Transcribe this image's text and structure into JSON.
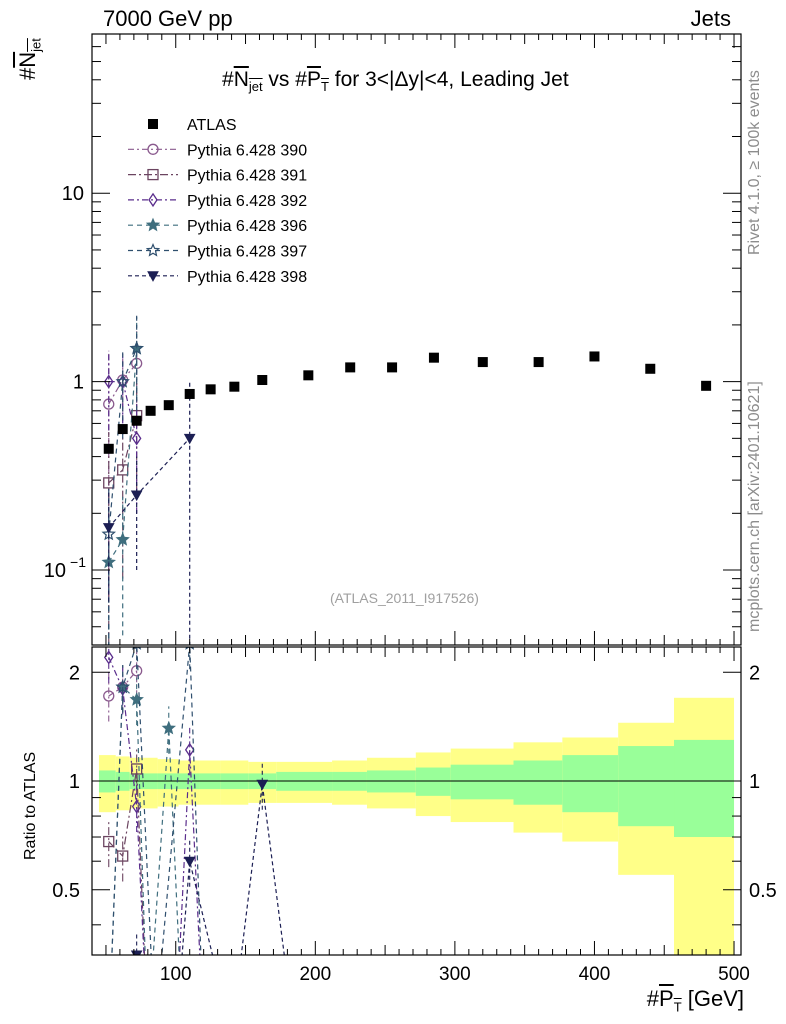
{
  "header": {
    "left": "7000 GeV pp",
    "right": "Jets"
  },
  "side_labels": {
    "rivet": "Rivet 4.1.0, ≥ 100k events",
    "source": "mcplots.cern.ch [arXiv:2401.10621]"
  },
  "reference": "(ATLAS_2011_I917526)",
  "labels": {
    "title_hash": "#",
    "title_n": "N",
    "title_n_sub": "jet",
    "title_vs": " vs #",
    "title_p": "P",
    "title_p_sub": "T",
    "title_rest": " for 3<|Δy|<4, Leading Jet",
    "ylabel_hash": "#",
    "ylabel_n": "N",
    "ylabel_sub": "jet",
    "ylabel_ratio": "Ratio to ATLAS",
    "xlabel_hash": "#",
    "xlabel_p": "P",
    "xlabel_sub": "T",
    "xlabel_unit": " [GeV]"
  },
  "colors": {
    "data": "#000000",
    "band_inner": "#99ff99",
    "band_outer": "#ffff88",
    "p390": "#8a5a8e",
    "p391": "#6b4460",
    "p392": "#5a2d8c",
    "p396": "#3f6e7e",
    "p397": "#2f4f6e",
    "p398": "#1c1f54"
  },
  "chart_data": {
    "type": "scatter",
    "title": "#Njet vs #PT for 3<|Δy|<4, Leading Jet",
    "xlabel": "#PT [GeV]",
    "ylabel": "#Njet",
    "xlim": [
      40,
      505
    ],
    "ylim": [
      0.04,
      70
    ],
    "ylog": true,
    "ratio_ylabel": "Ratio to ATLAS",
    "ratio_ylim": [
      0.33,
      2.35
    ],
    "ratio_ylog": true,
    "x_ticks": [
      100,
      200,
      300,
      400,
      500
    ],
    "y_ticks": [
      {
        "value": 0.1,
        "base": "10",
        "exp": "−1"
      },
      {
        "value": 1,
        "base": "1",
        "exp": ""
      },
      {
        "value": 10,
        "base": "10",
        "exp": ""
      }
    ],
    "ratio_ticks": [
      {
        "value": 0.5,
        "label": "0.5"
      },
      {
        "value": 1,
        "label": "1"
      },
      {
        "value": 2,
        "label": "2"
      }
    ],
    "atlas": {
      "name": "ATLAS",
      "x": [
        52,
        62,
        72,
        82,
        95,
        110,
        125,
        142,
        162,
        195,
        225,
        255,
        285,
        320,
        360,
        400,
        440,
        480
      ],
      "y": [
        0.44,
        0.56,
        0.62,
        0.7,
        0.75,
        0.86,
        0.91,
        0.94,
        1.02,
        1.08,
        1.19,
        1.19,
        1.34,
        1.27,
        1.27,
        1.36,
        1.17,
        0.95
      ]
    },
    "bands": {
      "edges": [
        45,
        57,
        67,
        77,
        87,
        102,
        117,
        132,
        152,
        172,
        212,
        237,
        272,
        297,
        342,
        377,
        417,
        457,
        500
      ],
      "inner_frac": [
        0.07,
        0.06,
        0.05,
        0.05,
        0.05,
        0.05,
        0.05,
        0.05,
        0.05,
        0.06,
        0.06,
        0.07,
        0.09,
        0.11,
        0.14,
        0.18,
        0.25,
        0.3
      ],
      "outer_frac": [
        0.18,
        0.17,
        0.16,
        0.16,
        0.15,
        0.14,
        0.14,
        0.14,
        0.13,
        0.13,
        0.14,
        0.16,
        0.2,
        0.23,
        0.28,
        0.32,
        0.45,
        0.7
      ]
    },
    "series": [
      {
        "name": "Pythia 6.428 390",
        "marker": "circle",
        "dash": "6,3,2,3",
        "color_key": "p390",
        "x": [
          52,
          62,
          72
        ],
        "y": [
          0.76,
          1.02,
          1.25
        ],
        "err": [
          0.7,
          0.4,
          0.6
        ],
        "ratio_x": [
          52,
          62,
          72
        ],
        "ratio_y": [
          1.72,
          1.82,
          2.02
        ]
      },
      {
        "name": "Pythia 6.428 391",
        "marker": "square",
        "dash": "8,3,2,3",
        "color_key": "p391",
        "x": [
          52,
          62,
          72
        ],
        "y": [
          0.29,
          0.34,
          0.66
        ],
        "err": [
          0.25,
          0.25,
          0.4
        ],
        "ratio_x": [
          52,
          62,
          72,
          80
        ],
        "ratio_y": [
          0.68,
          0.62,
          1.08,
          0.2
        ]
      },
      {
        "name": "Pythia 6.428 392",
        "marker": "diamond",
        "dash": "6,3,2,3",
        "color_key": "p392",
        "x": [
          52,
          62,
          72
        ],
        "y": [
          1.0,
          1.0,
          0.5
        ],
        "err": [
          0.45,
          0.4,
          0.3
        ],
        "ratio_x": [
          52,
          62,
          72,
          80,
          100,
          110,
          120
        ],
        "ratio_y": [
          2.2,
          1.8,
          0.85,
          0.2,
          0.2,
          1.22,
          0.2
        ]
      },
      {
        "name": "Pythia 6.428 396",
        "marker": "star",
        "dash": "5,4",
        "color_key": "p396",
        "x": [
          52,
          62,
          72
        ],
        "y": [
          0.11,
          0.145,
          1.5
        ],
        "err": [
          0.1,
          0.1,
          0.7
        ],
        "ratio_x": [
          52,
          62,
          72,
          80,
          95,
          105
        ],
        "ratio_y": [
          0.2,
          1.82,
          1.68,
          0.2,
          1.4,
          0.2
        ]
      },
      {
        "name": "Pythia 6.428 397",
        "marker": "star-open",
        "dash": "5,4",
        "color_key": "p397",
        "x": [
          52,
          62,
          72
        ],
        "y": [
          0.155,
          1.0,
          1.5
        ],
        "err": [
          0.12,
          0.5,
          0.8
        ],
        "ratio_x": [
          52,
          62,
          72,
          85,
          110,
          120
        ],
        "ratio_y": [
          0.2,
          1.82,
          2.4,
          0.2,
          2.4,
          0.2
        ]
      },
      {
        "name": "Pythia 6.428 398",
        "marker": "triangle-down",
        "dash": "4,3",
        "color_key": "p398",
        "x": [
          52,
          72,
          110
        ],
        "y": [
          0.168,
          0.25,
          0.5
        ],
        "err": [
          0.1,
          0.15,
          0.5
        ],
        "ratio_x": [
          52,
          62,
          72,
          100,
          110,
          140,
          162,
          185
        ],
        "ratio_y": [
          0.2,
          0.2,
          0.33,
          0.2,
          0.6,
          0.2,
          0.98,
          0.2
        ]
      }
    ]
  }
}
